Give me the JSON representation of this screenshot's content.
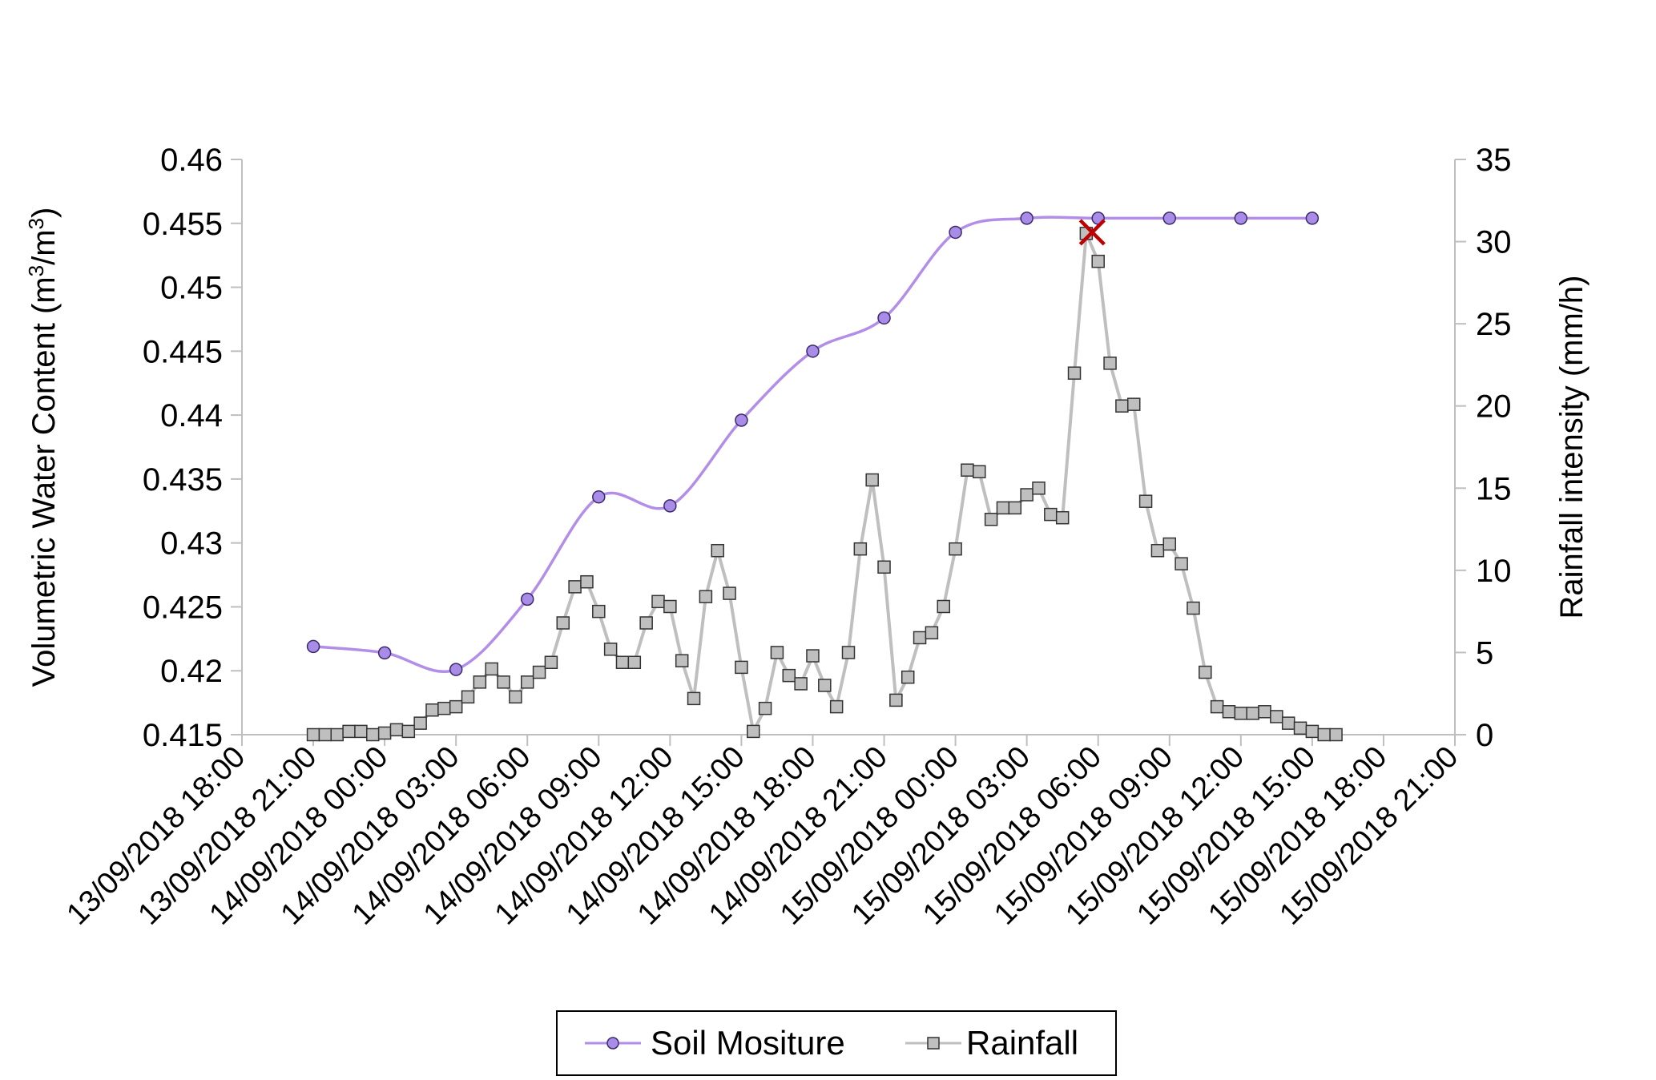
{
  "chart_data": {
    "type": "line",
    "title": "",
    "x_axis": {
      "type": "datetime",
      "range": [
        "2018-09-13 18:00",
        "2018-09-15 21:00"
      ],
      "tick_labels": [
        "13/09/2018 18:00",
        "13/09/2018 21:00",
        "14/09/2018 00:00",
        "14/09/2018 03:00",
        "14/09/2018 06:00",
        "14/09/2018 09:00",
        "14/09/2018 12:00",
        "14/09/2018 15:00",
        "14/09/2018 18:00",
        "14/09/2018 21:00",
        "15/09/2018 00:00",
        "15/09/2018 03:00",
        "15/09/2018 06:00",
        "15/09/2018 09:00",
        "15/09/2018 12:00",
        "15/09/2018 15:00",
        "15/09/2018 18:00",
        "15/09/2018 21:00"
      ]
    },
    "y_left": {
      "label": "Volumetric Water Content",
      "unit_base": "(m",
      "unit_sup1": "3",
      "unit_mid": "/m",
      "unit_sup2": "3",
      "unit_end": ")",
      "range": [
        0.415,
        0.46
      ],
      "ticks": [
        "0.415",
        "0.42",
        "0.425",
        "0.43",
        "0.435",
        "0.44",
        "0.445",
        "0.45",
        "0.455",
        "0.46"
      ]
    },
    "y_right": {
      "label": "Rainfall intensity (mm/h)",
      "range": [
        0,
        35
      ],
      "ticks": [
        "0",
        "5",
        "10",
        "15",
        "20",
        "25",
        "30",
        "35"
      ]
    },
    "grid": false,
    "legend_position": "bottom",
    "series": [
      {
        "name": "Soil Mositure",
        "axis": "left",
        "color": "#b38ee8",
        "marker": "circle",
        "marker_fill": "#a98be8",
        "smooth": true,
        "points": [
          [
            "2018-09-13 21:00",
            0.4219
          ],
          [
            "2018-09-14 00:00",
            0.4214
          ],
          [
            "2018-09-14 03:00",
            0.4201
          ],
          [
            "2018-09-14 06:00",
            0.4256
          ],
          [
            "2018-09-14 09:00",
            0.4336
          ],
          [
            "2018-09-14 12:00",
            0.4329
          ],
          [
            "2018-09-14 15:00",
            0.4396
          ],
          [
            "2018-09-14 18:00",
            0.445
          ],
          [
            "2018-09-14 21:00",
            0.4476
          ],
          [
            "2018-09-15 00:00",
            0.4543
          ],
          [
            "2018-09-15 03:00",
            0.4554
          ],
          [
            "2018-09-15 06:00",
            0.4554
          ],
          [
            "2018-09-15 09:00",
            0.4554
          ],
          [
            "2018-09-15 12:00",
            0.4554
          ],
          [
            "2018-09-15 15:00",
            0.4554
          ]
        ]
      },
      {
        "name": "Rainfall",
        "axis": "right",
        "color": "#bfbfbf",
        "marker": "square",
        "marker_fill": "#bfbfbf",
        "smooth": false,
        "points": [
          [
            "2018-09-13 21:00",
            0.0
          ],
          [
            "2018-09-13 21:30",
            0.0
          ],
          [
            "2018-09-13 22:00",
            0.0
          ],
          [
            "2018-09-13 22:30",
            0.2
          ],
          [
            "2018-09-13 23:00",
            0.2
          ],
          [
            "2018-09-13 23:30",
            0.0
          ],
          [
            "2018-09-14 00:00",
            0.1
          ],
          [
            "2018-09-14 00:30",
            0.3
          ],
          [
            "2018-09-14 01:00",
            0.2
          ],
          [
            "2018-09-14 01:30",
            0.7
          ],
          [
            "2018-09-14 02:00",
            1.5
          ],
          [
            "2018-09-14 02:30",
            1.6
          ],
          [
            "2018-09-14 03:00",
            1.7
          ],
          [
            "2018-09-14 03:30",
            2.3
          ],
          [
            "2018-09-14 04:00",
            3.2
          ],
          [
            "2018-09-14 04:30",
            4.0
          ],
          [
            "2018-09-14 05:00",
            3.2
          ],
          [
            "2018-09-14 05:30",
            2.3
          ],
          [
            "2018-09-14 06:00",
            3.2
          ],
          [
            "2018-09-14 06:30",
            3.8
          ],
          [
            "2018-09-14 07:00",
            4.4
          ],
          [
            "2018-09-14 07:30",
            6.8
          ],
          [
            "2018-09-14 08:00",
            9.0
          ],
          [
            "2018-09-14 08:30",
            9.3
          ],
          [
            "2018-09-14 09:00",
            7.5
          ],
          [
            "2018-09-14 09:30",
            5.2
          ],
          [
            "2018-09-14 10:00",
            4.4
          ],
          [
            "2018-09-14 10:30",
            4.4
          ],
          [
            "2018-09-14 11:00",
            6.8
          ],
          [
            "2018-09-14 11:30",
            8.1
          ],
          [
            "2018-09-14 12:00",
            7.8
          ],
          [
            "2018-09-14 12:30",
            4.5
          ],
          [
            "2018-09-14 13:00",
            2.2
          ],
          [
            "2018-09-14 13:30",
            8.4
          ],
          [
            "2018-09-14 14:00",
            11.2
          ],
          [
            "2018-09-14 14:30",
            8.6
          ],
          [
            "2018-09-14 15:00",
            4.1
          ],
          [
            "2018-09-14 15:30",
            0.2
          ],
          [
            "2018-09-14 16:00",
            1.6
          ],
          [
            "2018-09-14 16:30",
            5.0
          ],
          [
            "2018-09-14 17:00",
            3.6
          ],
          [
            "2018-09-14 17:30",
            3.1
          ],
          [
            "2018-09-14 18:00",
            4.8
          ],
          [
            "2018-09-14 18:30",
            3.0
          ],
          [
            "2018-09-14 19:00",
            1.7
          ],
          [
            "2018-09-14 19:30",
            5.0
          ],
          [
            "2018-09-14 20:00",
            11.3
          ],
          [
            "2018-09-14 20:30",
            15.5
          ],
          [
            "2018-09-14 21:00",
            10.2
          ],
          [
            "2018-09-14 21:30",
            2.1
          ],
          [
            "2018-09-14 22:00",
            3.5
          ],
          [
            "2018-09-14 22:30",
            5.9
          ],
          [
            "2018-09-14 23:00",
            6.2
          ],
          [
            "2018-09-14 23:30",
            7.8
          ],
          [
            "2018-09-15 00:00",
            11.3
          ],
          [
            "2018-09-15 00:30",
            16.1
          ],
          [
            "2018-09-15 01:00",
            16.0
          ],
          [
            "2018-09-15 01:30",
            13.1
          ],
          [
            "2018-09-15 02:00",
            13.8
          ],
          [
            "2018-09-15 02:30",
            13.8
          ],
          [
            "2018-09-15 03:00",
            14.6
          ],
          [
            "2018-09-15 03:30",
            15.0
          ],
          [
            "2018-09-15 04:00",
            13.4
          ],
          [
            "2018-09-15 04:30",
            13.2
          ],
          [
            "2018-09-15 05:00",
            22.0
          ],
          [
            "2018-09-15 05:30",
            30.5
          ],
          [
            "2018-09-15 06:00",
            28.8
          ],
          [
            "2018-09-15 06:30",
            22.6
          ],
          [
            "2018-09-15 07:00",
            20.0
          ],
          [
            "2018-09-15 07:30",
            20.1
          ],
          [
            "2018-09-15 08:00",
            14.2
          ],
          [
            "2018-09-15 08:30",
            11.2
          ],
          [
            "2018-09-15 09:00",
            11.6
          ],
          [
            "2018-09-15 09:30",
            10.4
          ],
          [
            "2018-09-15 10:00",
            7.7
          ],
          [
            "2018-09-15 10:30",
            3.8
          ],
          [
            "2018-09-15 11:00",
            1.7
          ],
          [
            "2018-09-15 11:30",
            1.4
          ],
          [
            "2018-09-15 12:00",
            1.3
          ],
          [
            "2018-09-15 12:30",
            1.3
          ],
          [
            "2018-09-15 13:00",
            1.4
          ],
          [
            "2018-09-15 13:30",
            1.1
          ],
          [
            "2018-09-15 14:00",
            0.7
          ],
          [
            "2018-09-15 14:30",
            0.4
          ],
          [
            "2018-09-15 15:00",
            0.2
          ],
          [
            "2018-09-15 15:30",
            0.0
          ],
          [
            "2018-09-15 16:00",
            0.0
          ]
        ]
      }
    ],
    "annotations": [
      {
        "type": "marker",
        "shape": "x",
        "color": "#c00000",
        "x": "2018-09-15 05:45",
        "y": 0.4543,
        "axis": "left"
      }
    ]
  }
}
